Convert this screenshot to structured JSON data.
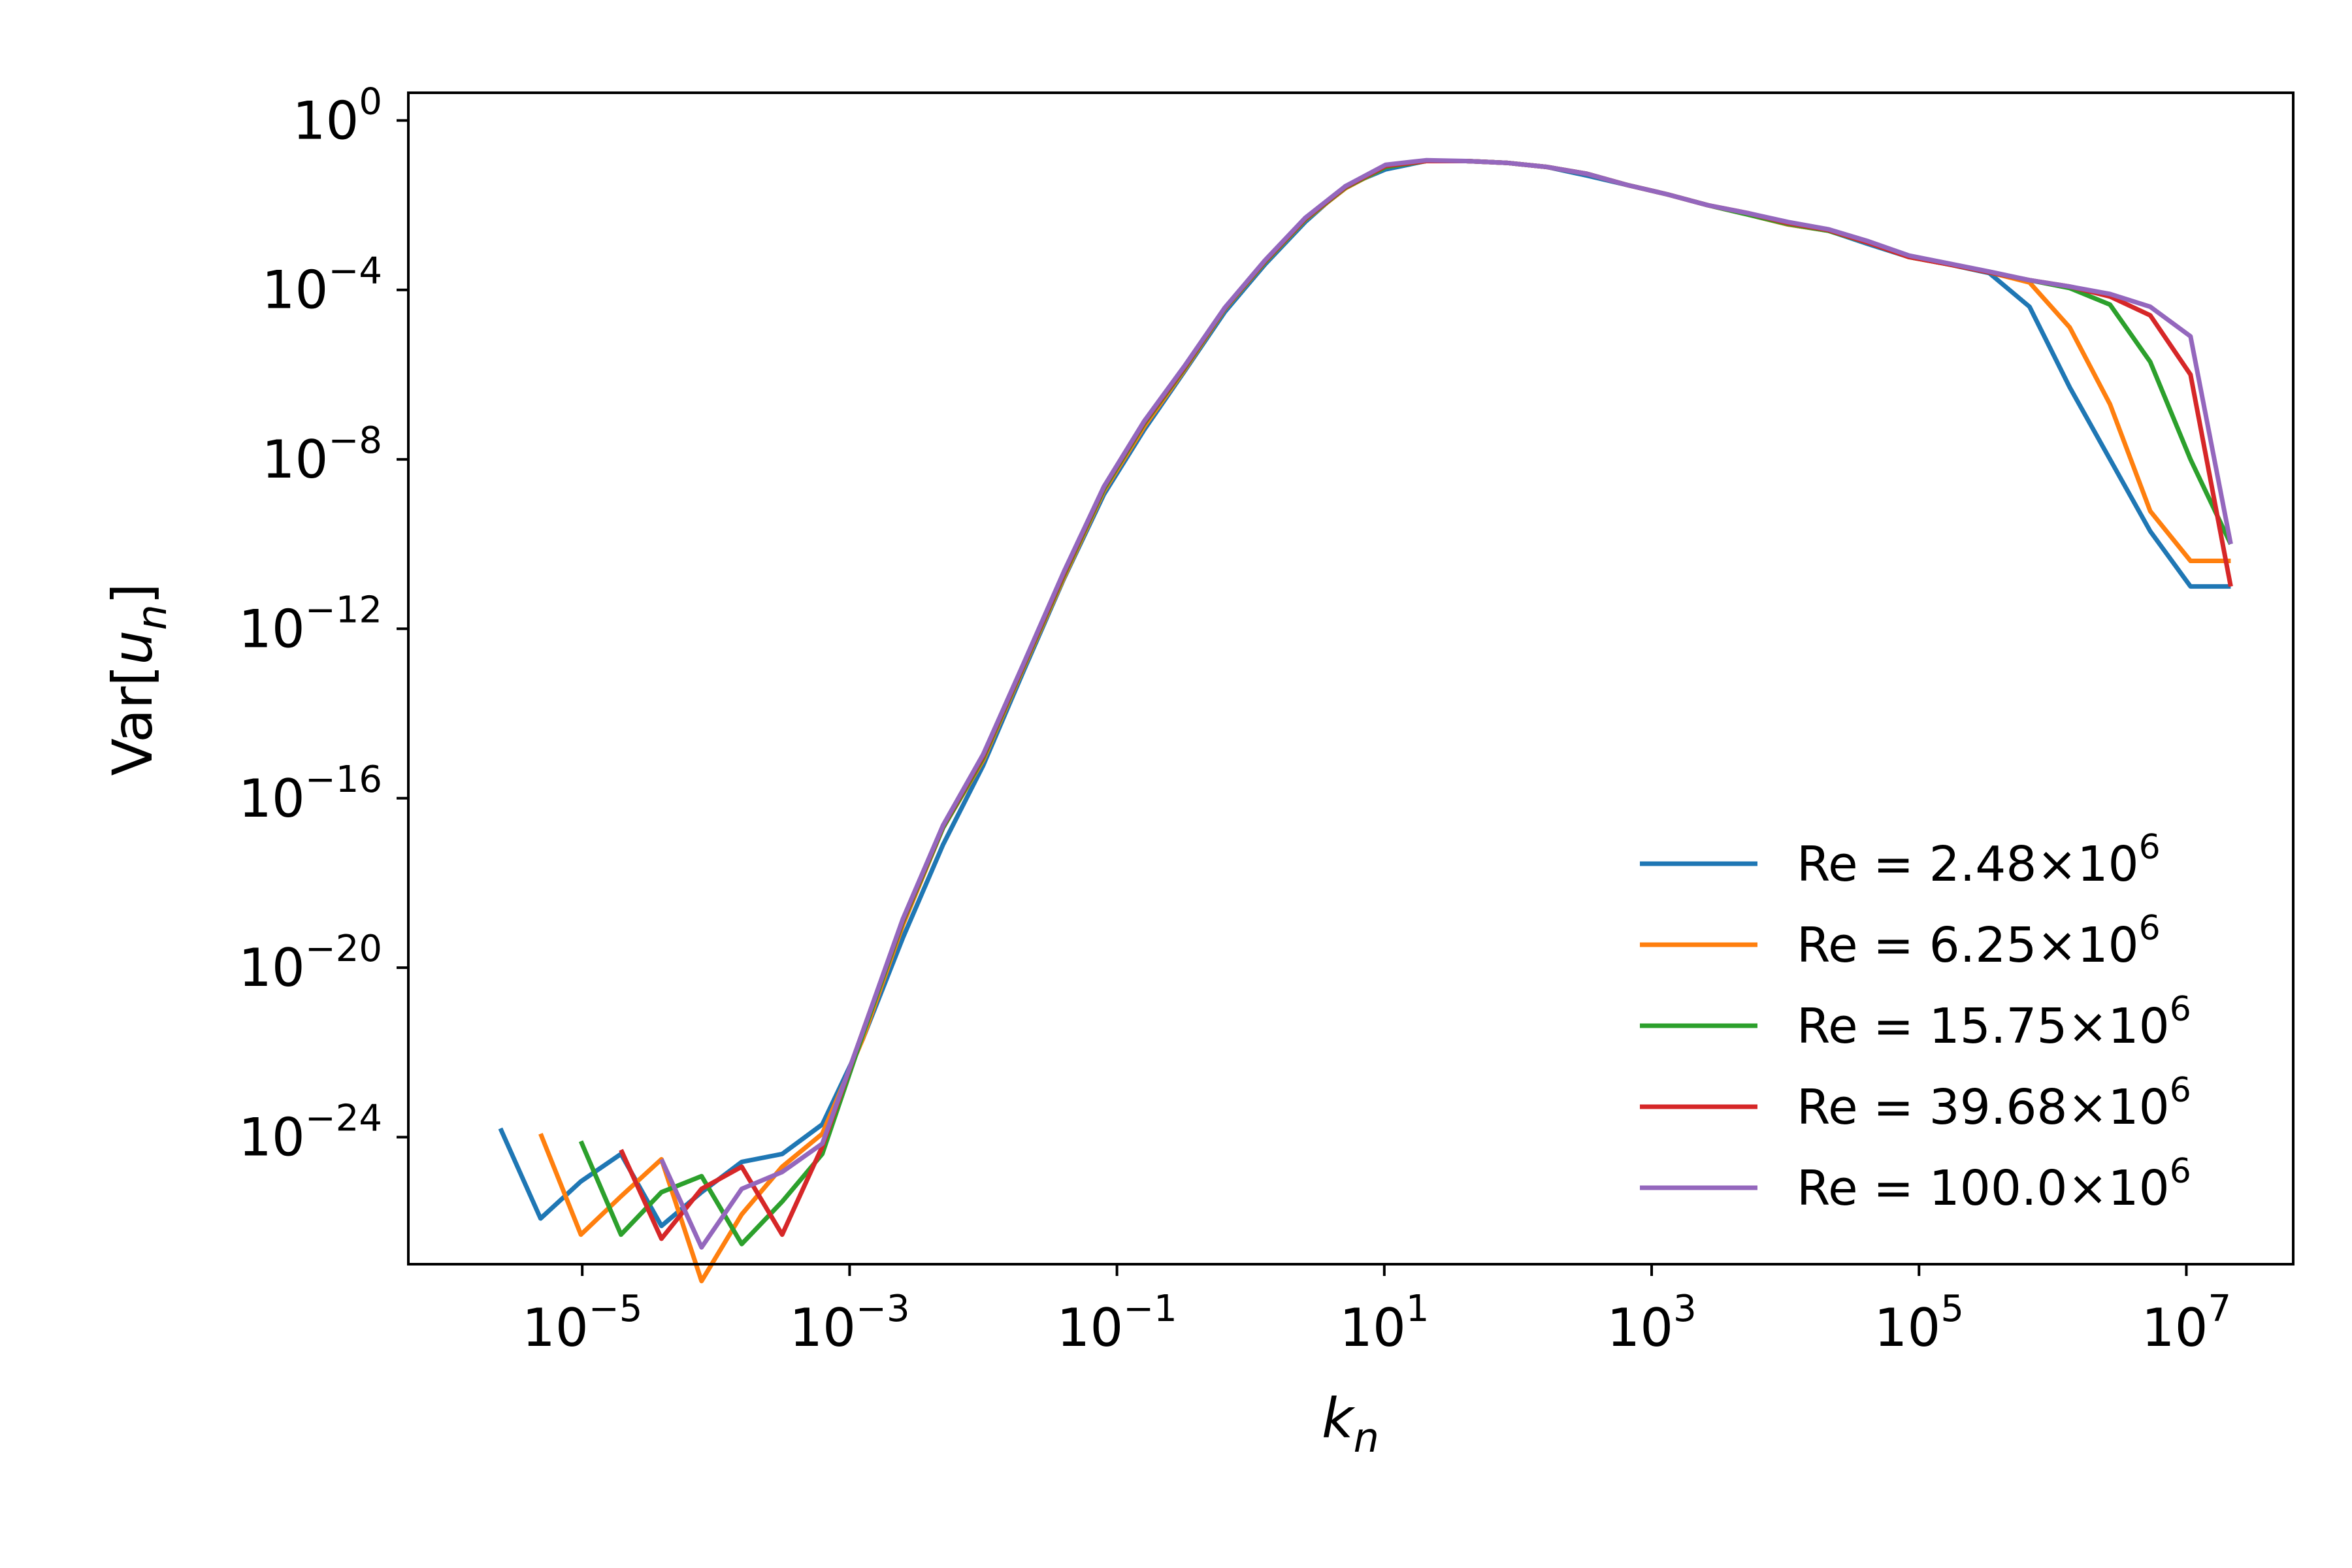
{
  "chart_data": {
    "type": "line",
    "xlabel": "k",
    "xlabel_sub": "n",
    "ylabel_prefix": "Var[",
    "ylabel_var": "u",
    "ylabel_sub": "n",
    "ylabel_suffix": "]",
    "xscale": "log",
    "yscale": "log",
    "xlim": [
      5e-07,
      63000000.0
    ],
    "ylim": [
      1e-27,
      4.5
    ],
    "x_ticks": [
      {
        "base": "10",
        "exp": "−5",
        "value": 1e-05
      },
      {
        "base": "10",
        "exp": "−3",
        "value": 0.001
      },
      {
        "base": "10",
        "exp": "−1",
        "value": 0.1
      },
      {
        "base": "10",
        "exp": "1",
        "value": 10.0
      },
      {
        "base": "10",
        "exp": "3",
        "value": 1000.0
      },
      {
        "base": "10",
        "exp": "5",
        "value": 100000.0
      },
      {
        "base": "10",
        "exp": "7",
        "value": 10000000.0
      }
    ],
    "y_ticks": [
      {
        "base": "10",
        "exp": "0",
        "value": 1
      },
      {
        "base": "10",
        "exp": "−4",
        "value": 0.0001
      },
      {
        "base": "10",
        "exp": "−8",
        "value": 1e-08
      },
      {
        "base": "10",
        "exp": "−12",
        "value": 1e-12
      },
      {
        "base": "10",
        "exp": "−16",
        "value": 1e-16
      },
      {
        "base": "10",
        "exp": "−20",
        "value": 1e-20
      },
      {
        "base": "10",
        "exp": "−24",
        "value": 1e-24
      }
    ],
    "grid": false,
    "legend_position": "lower-right",
    "x": [
      2.44e-06,
      4.88e-06,
      9.77e-06,
      1.95e-05,
      3.91e-05,
      7.81e-05,
      0.000156,
      0.000313,
      0.000625,
      0.00125,
      0.0025,
      0.005,
      0.01,
      0.02,
      0.04,
      0.08,
      0.16,
      0.32,
      0.64,
      1.28,
      2.56,
      5.12,
      10.24,
      20.48,
      40.96,
      81.92,
      163.84,
      327.68,
      655.36,
      1310.72,
      2621.44,
      5242.88,
      10485.76,
      20971.52,
      41943.04,
      83886.08,
      167772.16,
      335544.32,
      671088.64,
      1342177.28,
      2684354.56,
      5368709.12,
      10737418.24,
      21474836.48
    ],
    "series": [
      {
        "name": "Re = 2.48×10",
        "name_exp": "6",
        "color": "#1f77b4",
        "y": [
          1.6e-24,
          1.2e-26,
          9e-26,
          4e-25,
          8e-27,
          5e-26,
          2.6e-25,
          4e-25,
          2e-24,
          2e-22,
          5e-20,
          8e-18,
          6e-16,
          1e-13,
          1.5e-11,
          1.5e-09,
          5e-08,
          1.2e-06,
          3e-05,
          0.0004,
          0.004,
          0.028,
          0.07,
          0.11,
          0.11,
          0.1,
          0.08,
          0.05,
          0.03,
          0.018,
          0.01,
          0.006,
          0.0035,
          0.0025,
          0.0012,
          0.0006,
          0.0004,
          0.00025,
          4e-05,
          5e-07,
          1e-08,
          2e-10,
          1e-11,
          1e-11
        ]
      },
      {
        "name": "Re = 6.25×10",
        "name_exp": "6",
        "color": "#ff7f0e",
        "y": [
          null,
          1.2e-24,
          5e-27,
          4e-26,
          3e-25,
          4e-28,
          1.5e-26,
          2e-25,
          1.2e-24,
          2e-22,
          1e-19,
          2e-17,
          8e-16,
          1.2e-13,
          1.6e-11,
          1.8e-09,
          6e-08,
          1.3e-06,
          3.5e-05,
          0.00045,
          0.0045,
          0.025,
          0.08,
          0.11,
          0.11,
          0.1,
          0.08,
          0.055,
          0.03,
          0.018,
          0.01,
          0.006,
          0.0035,
          0.0025,
          0.0013,
          0.0006,
          0.0004,
          0.00026,
          0.00015,
          1.3e-05,
          2e-07,
          6e-10,
          4e-11,
          4e-11
        ]
      },
      {
        "name": "Re = 15.75×10",
        "name_exp": "6",
        "color": "#2ca02c",
        "y": [
          null,
          null,
          8e-25,
          5e-27,
          5e-26,
          1.2e-25,
          3e-27,
          3e-26,
          4e-25,
          2.5e-22,
          1.2e-19,
          2e-17,
          9e-16,
          1.3e-13,
          1.8e-11,
          2e-09,
          7e-08,
          1.4e-06,
          3.6e-05,
          0.00046,
          0.0046,
          0.026,
          0.08,
          0.11,
          0.11,
          0.1,
          0.08,
          0.055,
          0.03,
          0.018,
          0.01,
          0.006,
          0.0036,
          0.0025,
          0.0013,
          0.0006,
          0.0004,
          0.00026,
          0.00017,
          0.00011,
          4.5e-05,
          2e-06,
          1e-08,
          1e-10
        ]
      },
      {
        "name": "Re = 39.68×10",
        "name_exp": "6",
        "color": "#d62728",
        "y": [
          null,
          null,
          null,
          5e-25,
          4e-27,
          6e-26,
          2e-25,
          5e-27,
          6e-25,
          3e-22,
          1.3e-19,
          2.2e-17,
          1e-15,
          1.4e-13,
          2e-11,
          2.2e-09,
          7.5e-08,
          1.5e-06,
          3.7e-05,
          0.00048,
          0.0048,
          0.027,
          0.085,
          0.11,
          0.11,
          0.1,
          0.08,
          0.055,
          0.03,
          0.018,
          0.01,
          0.0065,
          0.0038,
          0.0026,
          0.0013,
          0.0006,
          0.0004,
          0.00026,
          0.00017,
          0.00012,
          7e-05,
          2.5e-05,
          1e-06,
          1e-11
        ]
      },
      {
        "name": "Re = 100.0×10",
        "name_exp": "6",
        "color": "#9467bd",
        "y": [
          null,
          null,
          null,
          null,
          3e-25,
          2.5e-27,
          6e-26,
          1.5e-25,
          7e-25,
          3e-22,
          1.4e-19,
          2.3e-17,
          1.1e-15,
          1.5e-13,
          2.2e-11,
          2.3e-09,
          8e-08,
          1.6e-06,
          3.8e-05,
          0.0005,
          0.005,
          0.028,
          0.09,
          0.115,
          0.11,
          0.1,
          0.08,
          0.055,
          0.03,
          0.018,
          0.01,
          0.0065,
          0.004,
          0.0027,
          0.0014,
          0.00065,
          0.00042,
          0.00027,
          0.00017,
          0.00012,
          8e-05,
          4e-05,
          8e-06,
          1e-10
        ]
      }
    ]
  }
}
